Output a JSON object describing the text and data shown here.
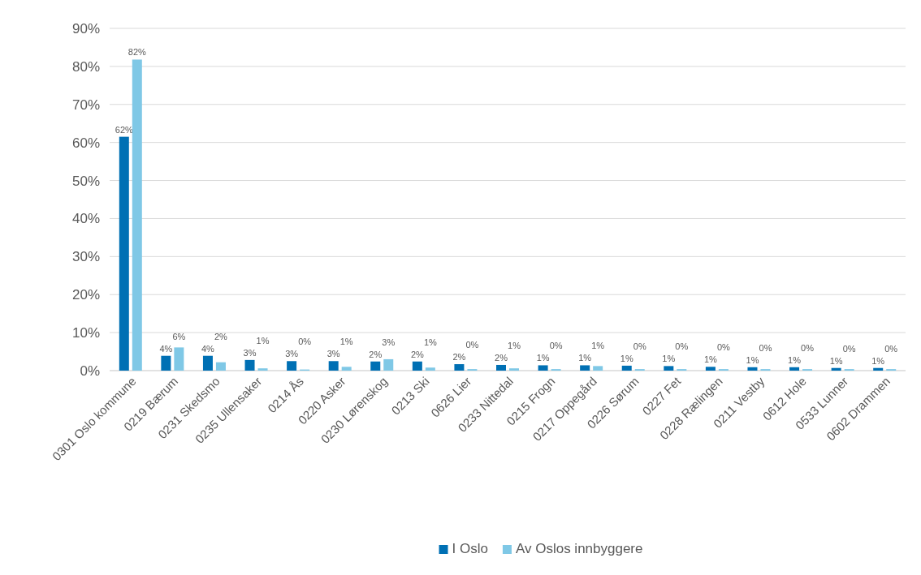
{
  "chart_data": {
    "type": "bar",
    "categories": [
      "0301 Oslo kommune",
      "0219 Bærum",
      "0231 Skedsmo",
      "0235 Ullensaker",
      "0214 Ås",
      "0220 Asker",
      "0230 Lørenskog",
      "0213 Ski",
      "0626 Lier",
      "0233 Nittedal",
      "0215 Frogn",
      "0217 Oppegård",
      "0226 Sørum",
      "0227 Fet",
      "0228 Rælingen",
      "0211 Vestby",
      "0612 Hole",
      "0533 Lunner",
      "0602 Drammen"
    ],
    "series": [
      {
        "name": "I Oslo",
        "color": "#0070b4",
        "values": [
          61.5,
          3.9,
          3.9,
          2.8,
          2.5,
          2.5,
          2.4,
          2.4,
          1.7,
          1.5,
          1.4,
          1.4,
          1.3,
          1.2,
          1.0,
          0.9,
          0.9,
          0.7,
          0.7
        ],
        "value_labels": [
          "62%",
          "4%",
          "4%",
          "3%",
          "3%",
          "3%",
          "2%",
          "2%",
          "2%",
          "2%",
          "1%",
          "1%",
          "1%",
          "1%",
          "1%",
          "1%",
          "1%",
          "1%",
          "1%"
        ]
      },
      {
        "name": "Av Oslos innbyggere",
        "color": "#7fc8e6",
        "values": [
          81.8,
          6.1,
          2.2,
          0.6,
          0.3,
          1.0,
          3.0,
          0.8,
          0.4,
          0.6,
          0.4,
          1.2,
          0.4,
          0.4,
          0.4,
          0.4,
          0.4,
          0.4,
          0.4
        ],
        "value_labels": [
          "82%",
          "6%",
          "2%",
          "1%",
          "0%",
          "1%",
          "3%",
          "1%",
          "0%",
          "1%",
          "0%",
          "1%",
          "0%",
          "0%",
          "0%",
          "0%",
          "0%",
          "0%",
          "0%"
        ]
      }
    ],
    "ylim": [
      0,
      90
    ],
    "yticks": [
      {
        "value": 0,
        "label": "0%"
      },
      {
        "value": 10,
        "label": "10%"
      },
      {
        "value": 20,
        "label": "20%"
      },
      {
        "value": 30,
        "label": "30%"
      },
      {
        "value": 40,
        "label": "40%"
      },
      {
        "value": 50,
        "label": "50%"
      },
      {
        "value": 60,
        "label": "60%"
      },
      {
        "value": 70,
        "label": "70%"
      },
      {
        "value": 80,
        "label": "80%"
      },
      {
        "value": 90,
        "label": "90%"
      }
    ],
    "grid": "y",
    "legend": "bottom"
  }
}
